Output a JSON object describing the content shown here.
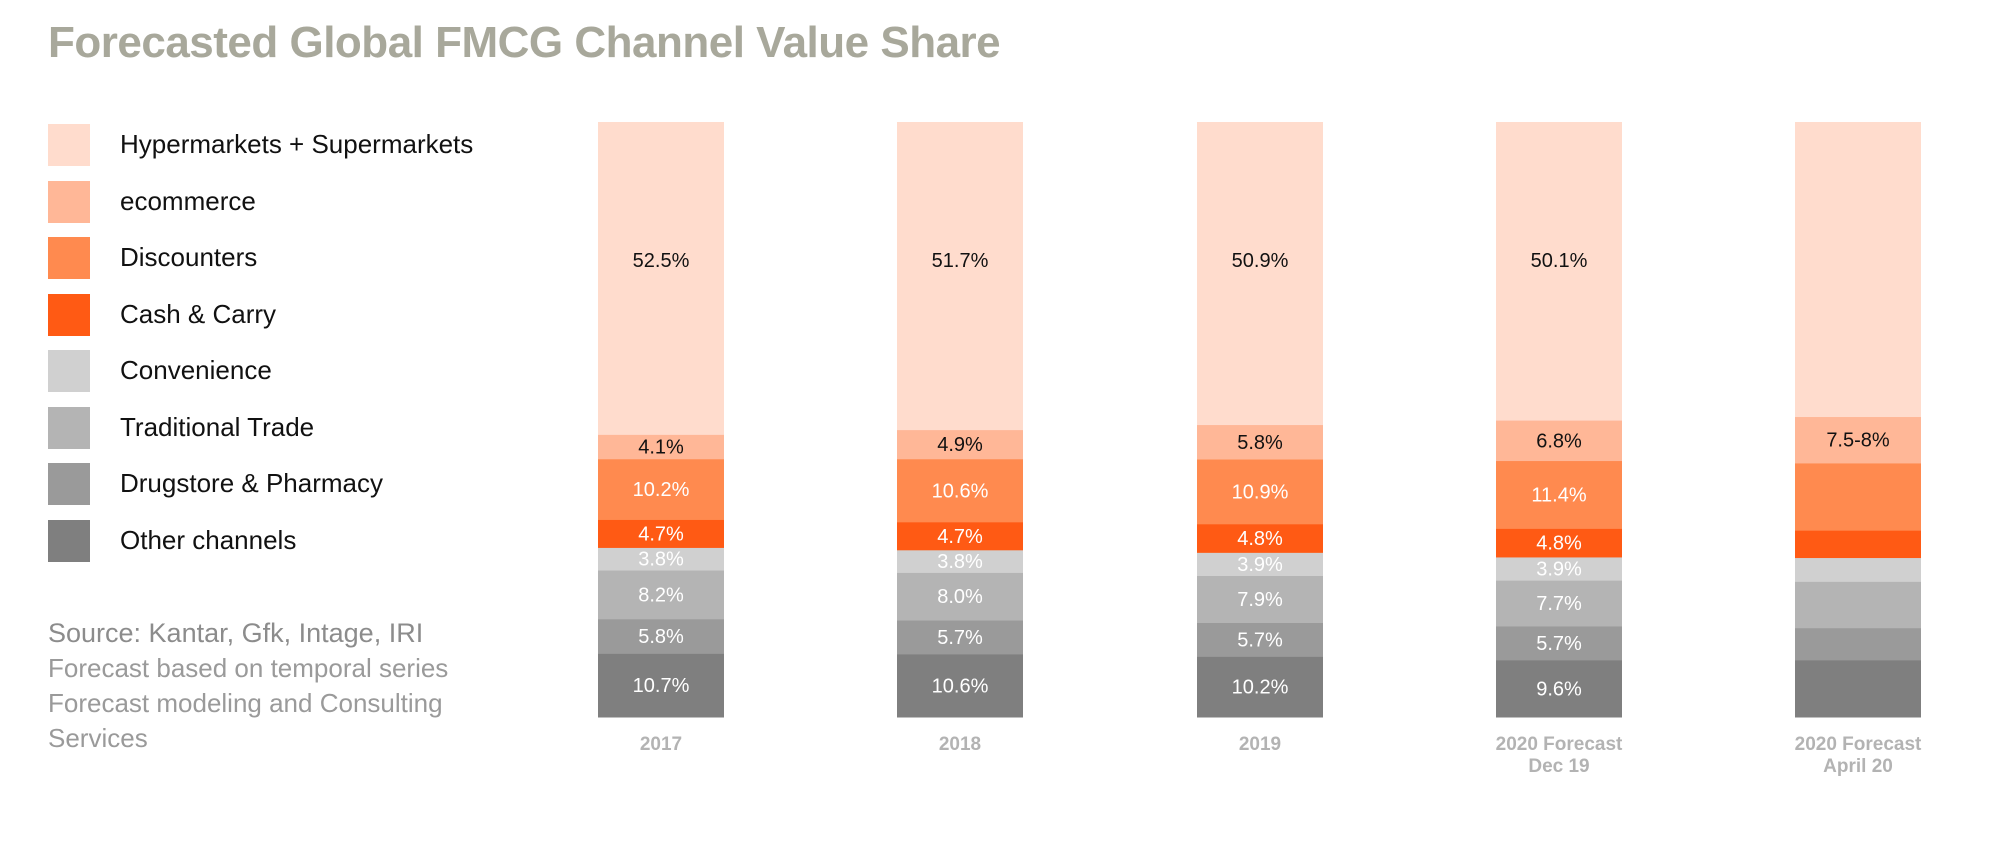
{
  "title": "Forecasted Global FMCG Channel Value Share",
  "source": {
    "main": "Source: Kantar, Gfk, Intage, IRI",
    "note": "Forecast based on temporal series Forecast modeling and Consulting Services"
  },
  "colors": {
    "title": "#a8a89b",
    "hypermarkets": "#ffdccd",
    "ecommerce": "#ffb797",
    "discounters": "#ff8a4f",
    "cash_carry": "#ff5a14",
    "convenience": "#d0d0d0",
    "traditional": "#b4b4b4",
    "drugstore": "#9a9a9a",
    "other": "#7f7f7f"
  },
  "legend": [
    {
      "label": "Hypermarkets + Supermarkets",
      "color": "#ffdccd"
    },
    {
      "label": "ecommerce",
      "color": "#ffb797"
    },
    {
      "label": "Discounters",
      "color": "#ff8a4f"
    },
    {
      "label": "Cash & Carry",
      "color": "#ff5a14"
    },
    {
      "label": "Convenience",
      "color": "#d0d0d0"
    },
    {
      "label": "Traditional Trade",
      "color": "#b4b4b4"
    },
    {
      "label": "Drugstore & Pharmacy",
      "color": "#9a9a9a"
    },
    {
      "label": "Other channels",
      "color": "#7f7f7f"
    }
  ],
  "chart_data": {
    "type": "bar",
    "stacked": true,
    "categories": [
      "2017",
      "2018",
      "2019",
      "2020 Forecast\nDec 19",
      "2020 Forecast\nApril 20"
    ],
    "series": [
      {
        "name": "Other channels",
        "color": "#7f7f7f",
        "values": [
          10.7,
          10.6,
          10.2,
          9.6,
          9.6
        ],
        "labels": [
          "10.7%",
          "10.6%",
          "10.2%",
          "9.6%",
          ""
        ]
      },
      {
        "name": "Drugstore & Pharmacy",
        "color": "#9a9a9a",
        "values": [
          5.8,
          5.7,
          5.7,
          5.7,
          5.4
        ],
        "labels": [
          "5.8%",
          "5.7%",
          "5.7%",
          "5.7%",
          ""
        ]
      },
      {
        "name": "Traditional Trade",
        "color": "#b4b4b4",
        "values": [
          8.2,
          8.0,
          7.9,
          7.7,
          7.8
        ],
        "labels": [
          "8.2%",
          "8.0%",
          "7.9%",
          "7.7%",
          ""
        ]
      },
      {
        "name": "Convenience",
        "color": "#d0d0d0",
        "values": [
          3.8,
          3.8,
          3.9,
          3.9,
          4.0
        ],
        "labels": [
          "3.8%",
          "3.8%",
          "3.9%",
          "3.9%",
          ""
        ]
      },
      {
        "name": "Cash & Carry",
        "color": "#ff5a14",
        "values": [
          4.7,
          4.7,
          4.8,
          4.8,
          4.6
        ],
        "labels": [
          "4.7%",
          "4.7%",
          "4.8%",
          "4.8%",
          ""
        ]
      },
      {
        "name": "Discounters",
        "color": "#ff8a4f",
        "values": [
          10.2,
          10.6,
          10.9,
          11.4,
          11.3
        ],
        "labels": [
          "10.2%",
          "10.6%",
          "10.9%",
          "11.4%",
          ""
        ]
      },
      {
        "name": "ecommerce",
        "color": "#ffb797",
        "values": [
          4.1,
          4.9,
          5.8,
          6.8,
          7.8
        ],
        "labels": [
          "4.1%",
          "4.9%",
          "5.8%",
          "6.8%",
          "7.5-8%"
        ]
      },
      {
        "name": "Hypermarkets + Supermarkets",
        "color": "#ffdccd",
        "values": [
          52.5,
          51.7,
          50.9,
          50.1,
          49.5
        ],
        "labels": [
          "52.5%",
          "51.7%",
          "50.9%",
          "50.1%",
          ""
        ]
      }
    ],
    "ylim": [
      0,
      100
    ],
    "legend_position": "left"
  }
}
